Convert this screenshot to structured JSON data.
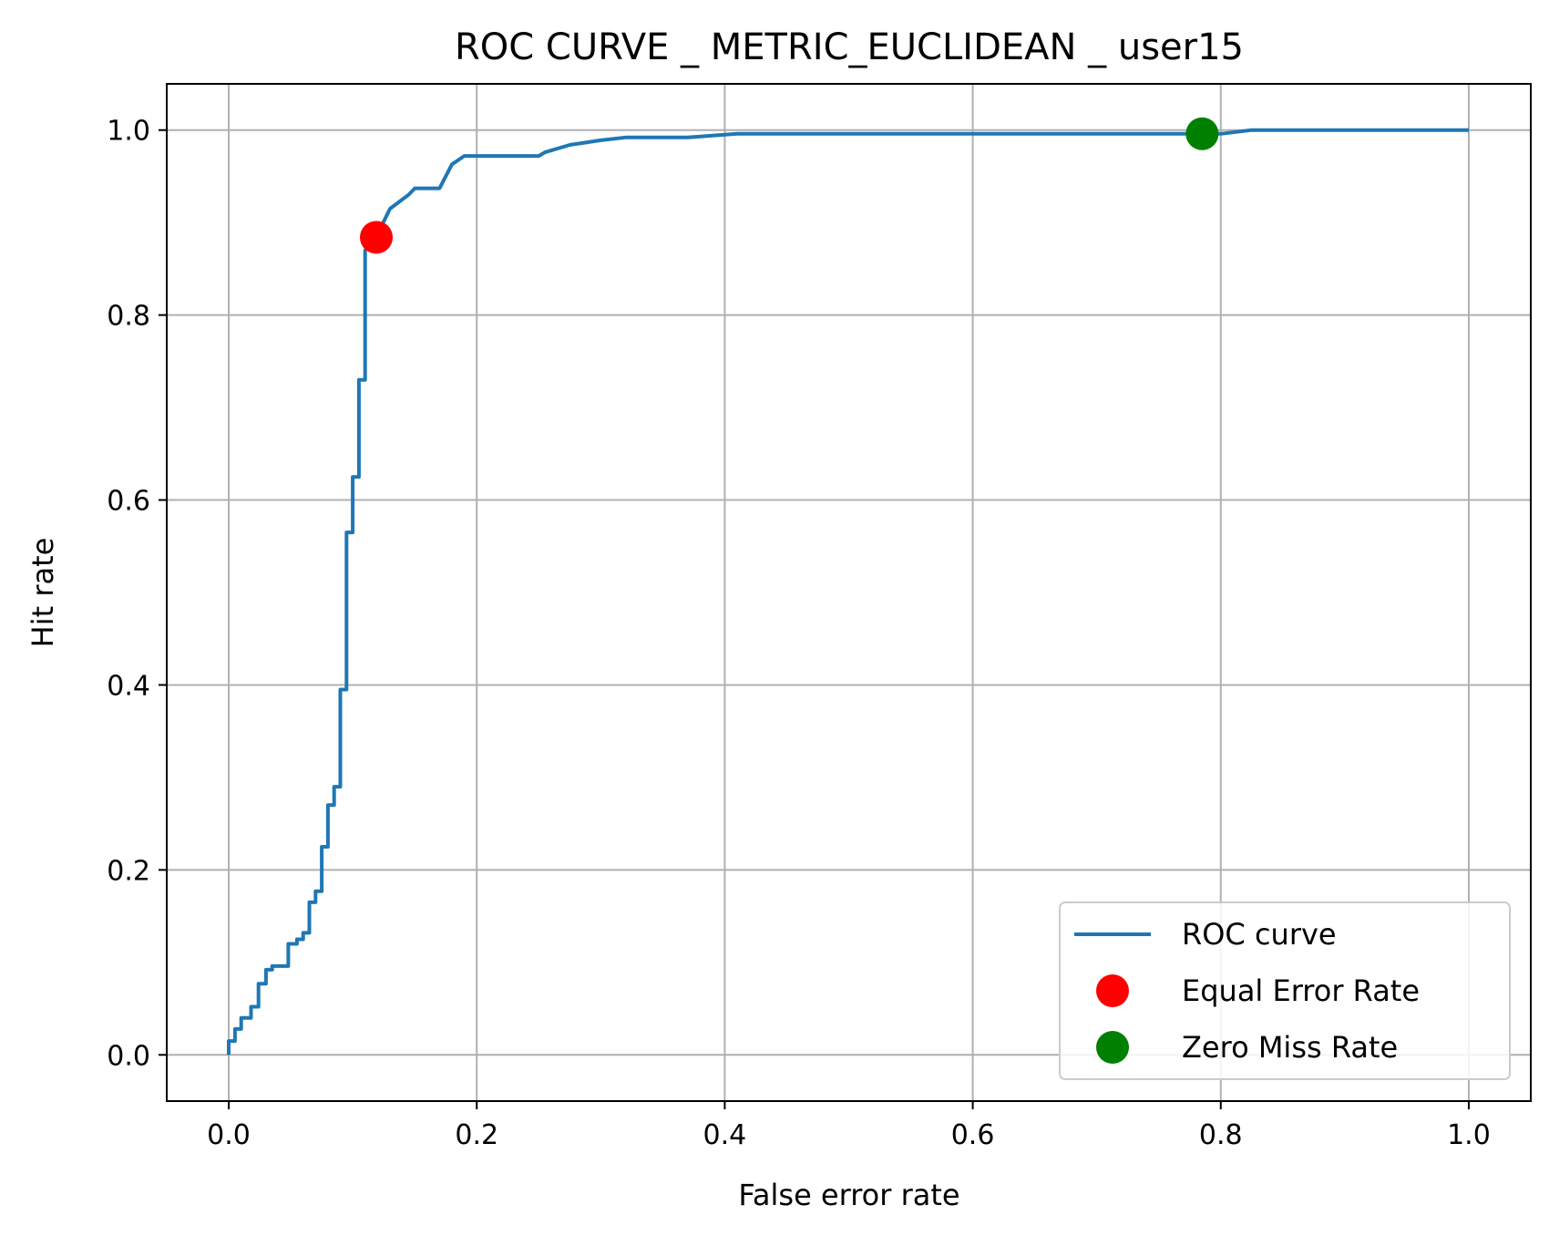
{
  "chart_data": {
    "type": "line",
    "title": "ROC CURVE _ METRIC_EUCLIDEAN _ user15",
    "xlabel": "False error rate",
    "ylabel": "Hit rate",
    "xlim": [
      -0.05,
      1.05
    ],
    "ylim": [
      -0.05,
      1.05
    ],
    "xticks": [
      0.0,
      0.2,
      0.4,
      0.6,
      0.8,
      1.0
    ],
    "xtick_labels": [
      "0.0",
      "0.2",
      "0.4",
      "0.6",
      "0.8",
      "1.0"
    ],
    "yticks": [
      0.0,
      0.2,
      0.4,
      0.6,
      0.8,
      1.0
    ],
    "ytick_labels": [
      "0.0",
      "0.2",
      "0.4",
      "0.6",
      "0.8",
      "1.0"
    ],
    "grid": true,
    "legend_position": "lower-right",
    "series": [
      {
        "name": "ROC curve",
        "kind": "line",
        "color": "#1f77b4",
        "x": [
          0.0,
          0.0,
          0.005,
          0.005,
          0.01,
          0.01,
          0.018,
          0.018,
          0.024,
          0.024,
          0.03,
          0.03,
          0.035,
          0.035,
          0.04,
          0.04,
          0.048,
          0.048,
          0.055,
          0.055,
          0.06,
          0.06,
          0.065,
          0.065,
          0.07,
          0.07,
          0.075,
          0.075,
          0.08,
          0.08,
          0.085,
          0.085,
          0.09,
          0.09,
          0.095,
          0.095,
          0.1,
          0.1,
          0.105,
          0.105,
          0.11,
          0.11,
          0.118,
          0.13,
          0.145,
          0.15,
          0.17,
          0.18,
          0.19,
          0.25,
          0.255,
          0.275,
          0.3,
          0.32,
          0.37,
          0.41,
          0.5,
          0.6,
          0.7,
          0.785,
          0.8,
          0.825,
          0.9,
          1.0
        ],
        "y": [
          0.0,
          0.015,
          0.015,
          0.028,
          0.028,
          0.04,
          0.04,
          0.052,
          0.052,
          0.077,
          0.077,
          0.092,
          0.092,
          0.096,
          0.096,
          0.096,
          0.096,
          0.12,
          0.12,
          0.125,
          0.125,
          0.132,
          0.132,
          0.165,
          0.165,
          0.177,
          0.177,
          0.225,
          0.225,
          0.27,
          0.27,
          0.29,
          0.29,
          0.395,
          0.395,
          0.565,
          0.565,
          0.625,
          0.625,
          0.73,
          0.73,
          0.87,
          0.882,
          0.915,
          0.93,
          0.937,
          0.937,
          0.963,
          0.972,
          0.972,
          0.976,
          0.984,
          0.989,
          0.992,
          0.992,
          0.996,
          0.996,
          0.996,
          0.996,
          0.996,
          0.996,
          1.0,
          1.0,
          1.0
        ]
      },
      {
        "name": "Equal Error Rate",
        "kind": "marker",
        "color": "#ff0000",
        "x": [
          0.119
        ],
        "y": [
          0.884
        ]
      },
      {
        "name": "Zero Miss Rate",
        "kind": "marker",
        "color": "#008000",
        "x": [
          0.785
        ],
        "y": [
          0.996
        ]
      }
    ],
    "colors": {
      "grid": "#b0b0b0",
      "axis": "#000000",
      "legend_border": "#cccccc"
    }
  }
}
